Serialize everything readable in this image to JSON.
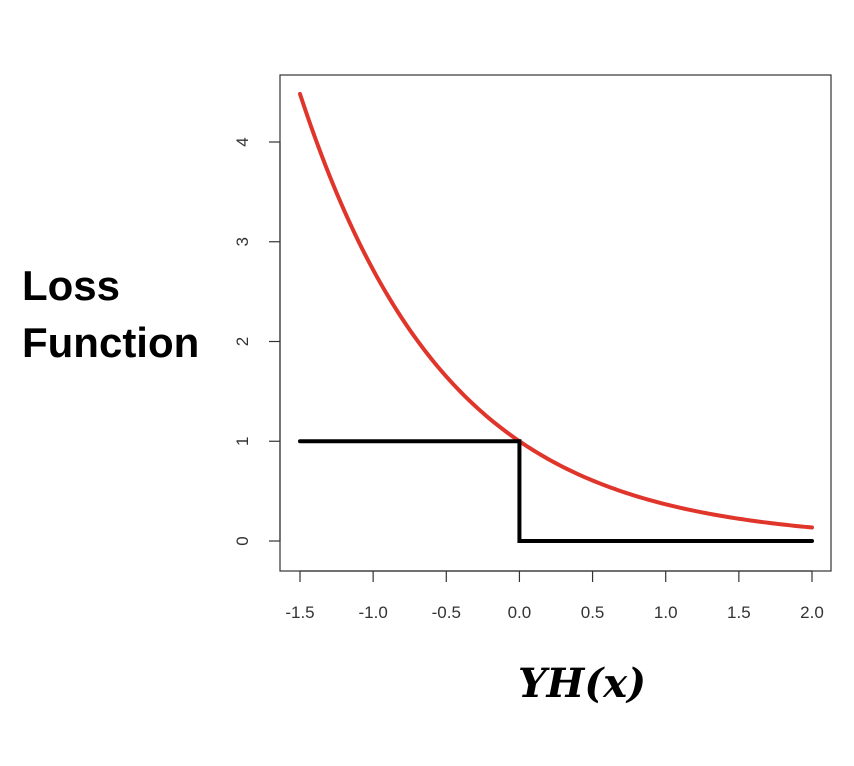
{
  "chart_data": {
    "type": "line",
    "title": "",
    "xlabel": "YH(x)",
    "ylabel_lines": [
      "Loss",
      "Function"
    ],
    "xlim": [
      -1.5,
      2.0
    ],
    "ylim": [
      0,
      4.5
    ],
    "x_ticks": [
      -1.5,
      -1.0,
      -0.5,
      0.0,
      0.5,
      1.0,
      1.5,
      2.0
    ],
    "x_tick_labels": [
      "-1.5",
      "-1.0",
      "-0.5",
      "0.0",
      "0.5",
      "1.0",
      "1.5",
      "2.0"
    ],
    "y_ticks": [
      0,
      1,
      2,
      3,
      4
    ],
    "y_tick_labels": [
      "0",
      "1",
      "2",
      "3",
      "4"
    ],
    "grid": false,
    "series": [
      {
        "color": "#e0352b",
        "x": [
          -1.5,
          -1.25,
          -1.0,
          -0.75,
          -0.5,
          -0.25,
          0.0,
          0.25,
          0.5,
          0.75,
          1.0,
          1.25,
          1.5,
          1.75,
          2.0
        ],
        "y": [
          4.48,
          3.49,
          2.72,
          2.12,
          1.65,
          1.28,
          1.0,
          0.78,
          0.61,
          0.47,
          0.37,
          0.29,
          0.22,
          0.17,
          0.14
        ]
      },
      {
        "color": "#000000",
        "x": [
          -1.5,
          0.0,
          0.0,
          2.0
        ],
        "y": [
          1,
          1,
          0,
          0
        ]
      }
    ]
  }
}
